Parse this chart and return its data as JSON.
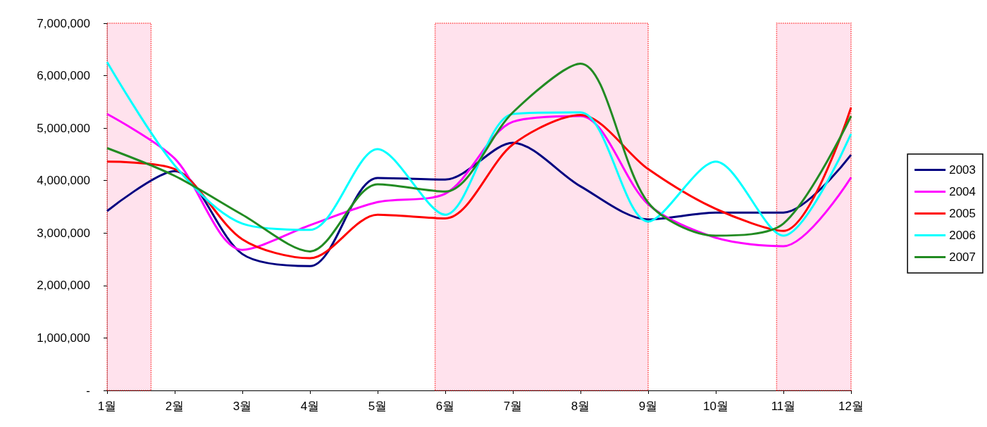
{
  "chart_data": {
    "type": "line",
    "x": [
      1,
      2,
      3,
      4,
      5,
      6,
      7,
      8,
      9,
      10,
      11,
      12
    ],
    "xlim": [
      1,
      12
    ],
    "xticks": [
      {
        "value": 1,
        "label": "1월"
      },
      {
        "value": 2,
        "label": "2월"
      },
      {
        "value": 3,
        "label": "3월"
      },
      {
        "value": 4,
        "label": "4월"
      },
      {
        "value": 5,
        "label": "5월"
      },
      {
        "value": 6,
        "label": "6월"
      },
      {
        "value": 7,
        "label": "7월"
      },
      {
        "value": 8,
        "label": "8월"
      },
      {
        "value": 9,
        "label": "9월"
      },
      {
        "value": 10,
        "label": "10월"
      },
      {
        "value": 11,
        "label": "11월"
      },
      {
        "value": 12,
        "label": "12월"
      }
    ],
    "ylim": [
      0,
      7000000
    ],
    "yticks": [
      {
        "value": 0,
        "label": "-"
      },
      {
        "value": 1000000,
        "label": "1,000,000"
      },
      {
        "value": 2000000,
        "label": "2,000,000"
      },
      {
        "value": 3000000,
        "label": "3,000,000"
      },
      {
        "value": 4000000,
        "label": "4,000,000"
      },
      {
        "value": 5000000,
        "label": "5,000,000"
      },
      {
        "value": 6000000,
        "label": "6,000,000"
      },
      {
        "value": 7000000,
        "label": "7,000,000"
      }
    ],
    "series": [
      {
        "name": "2003",
        "color": "#000080",
        "values": [
          3420000,
          4180000,
          2600000,
          2370000,
          4050000,
          4020000,
          4720000,
          3890000,
          3260000,
          3390000,
          3390000,
          4490000
        ]
      },
      {
        "name": "2004",
        "color": "#ff00ff",
        "values": [
          5270000,
          4420000,
          2680000,
          3150000,
          3590000,
          3750000,
          5120000,
          5230000,
          3550000,
          2910000,
          2750000,
          4060000
        ]
      },
      {
        "name": "2005",
        "color": "#ff0000",
        "values": [
          4360000,
          4220000,
          2880000,
          2520000,
          3350000,
          3280000,
          4690000,
          5250000,
          4220000,
          3460000,
          3040000,
          5390000
        ]
      },
      {
        "name": "2006",
        "color": "#00ffff",
        "values": [
          6260000,
          4290000,
          3180000,
          3060000,
          4600000,
          3350000,
          5270000,
          5300000,
          3220000,
          4360000,
          2950000,
          4890000
        ]
      },
      {
        "name": "2007",
        "color": "#228b22",
        "values": [
          4620000,
          4090000,
          3350000,
          2650000,
          3930000,
          3790000,
          5300000,
          6230000,
          3580000,
          2950000,
          3180000,
          5230000
        ]
      }
    ],
    "bands": [
      {
        "axis": "x",
        "from": 1,
        "to": 1.65,
        "color": "#ffd6e6"
      },
      {
        "axis": "x",
        "from": 5.85,
        "to": 9,
        "color": "#ffd6e6"
      },
      {
        "axis": "x",
        "from": 10.9,
        "to": 12,
        "color": "#ffd6e6"
      }
    ],
    "legend": "right",
    "grid": false,
    "marker": "none",
    "line_style": "solid"
  }
}
